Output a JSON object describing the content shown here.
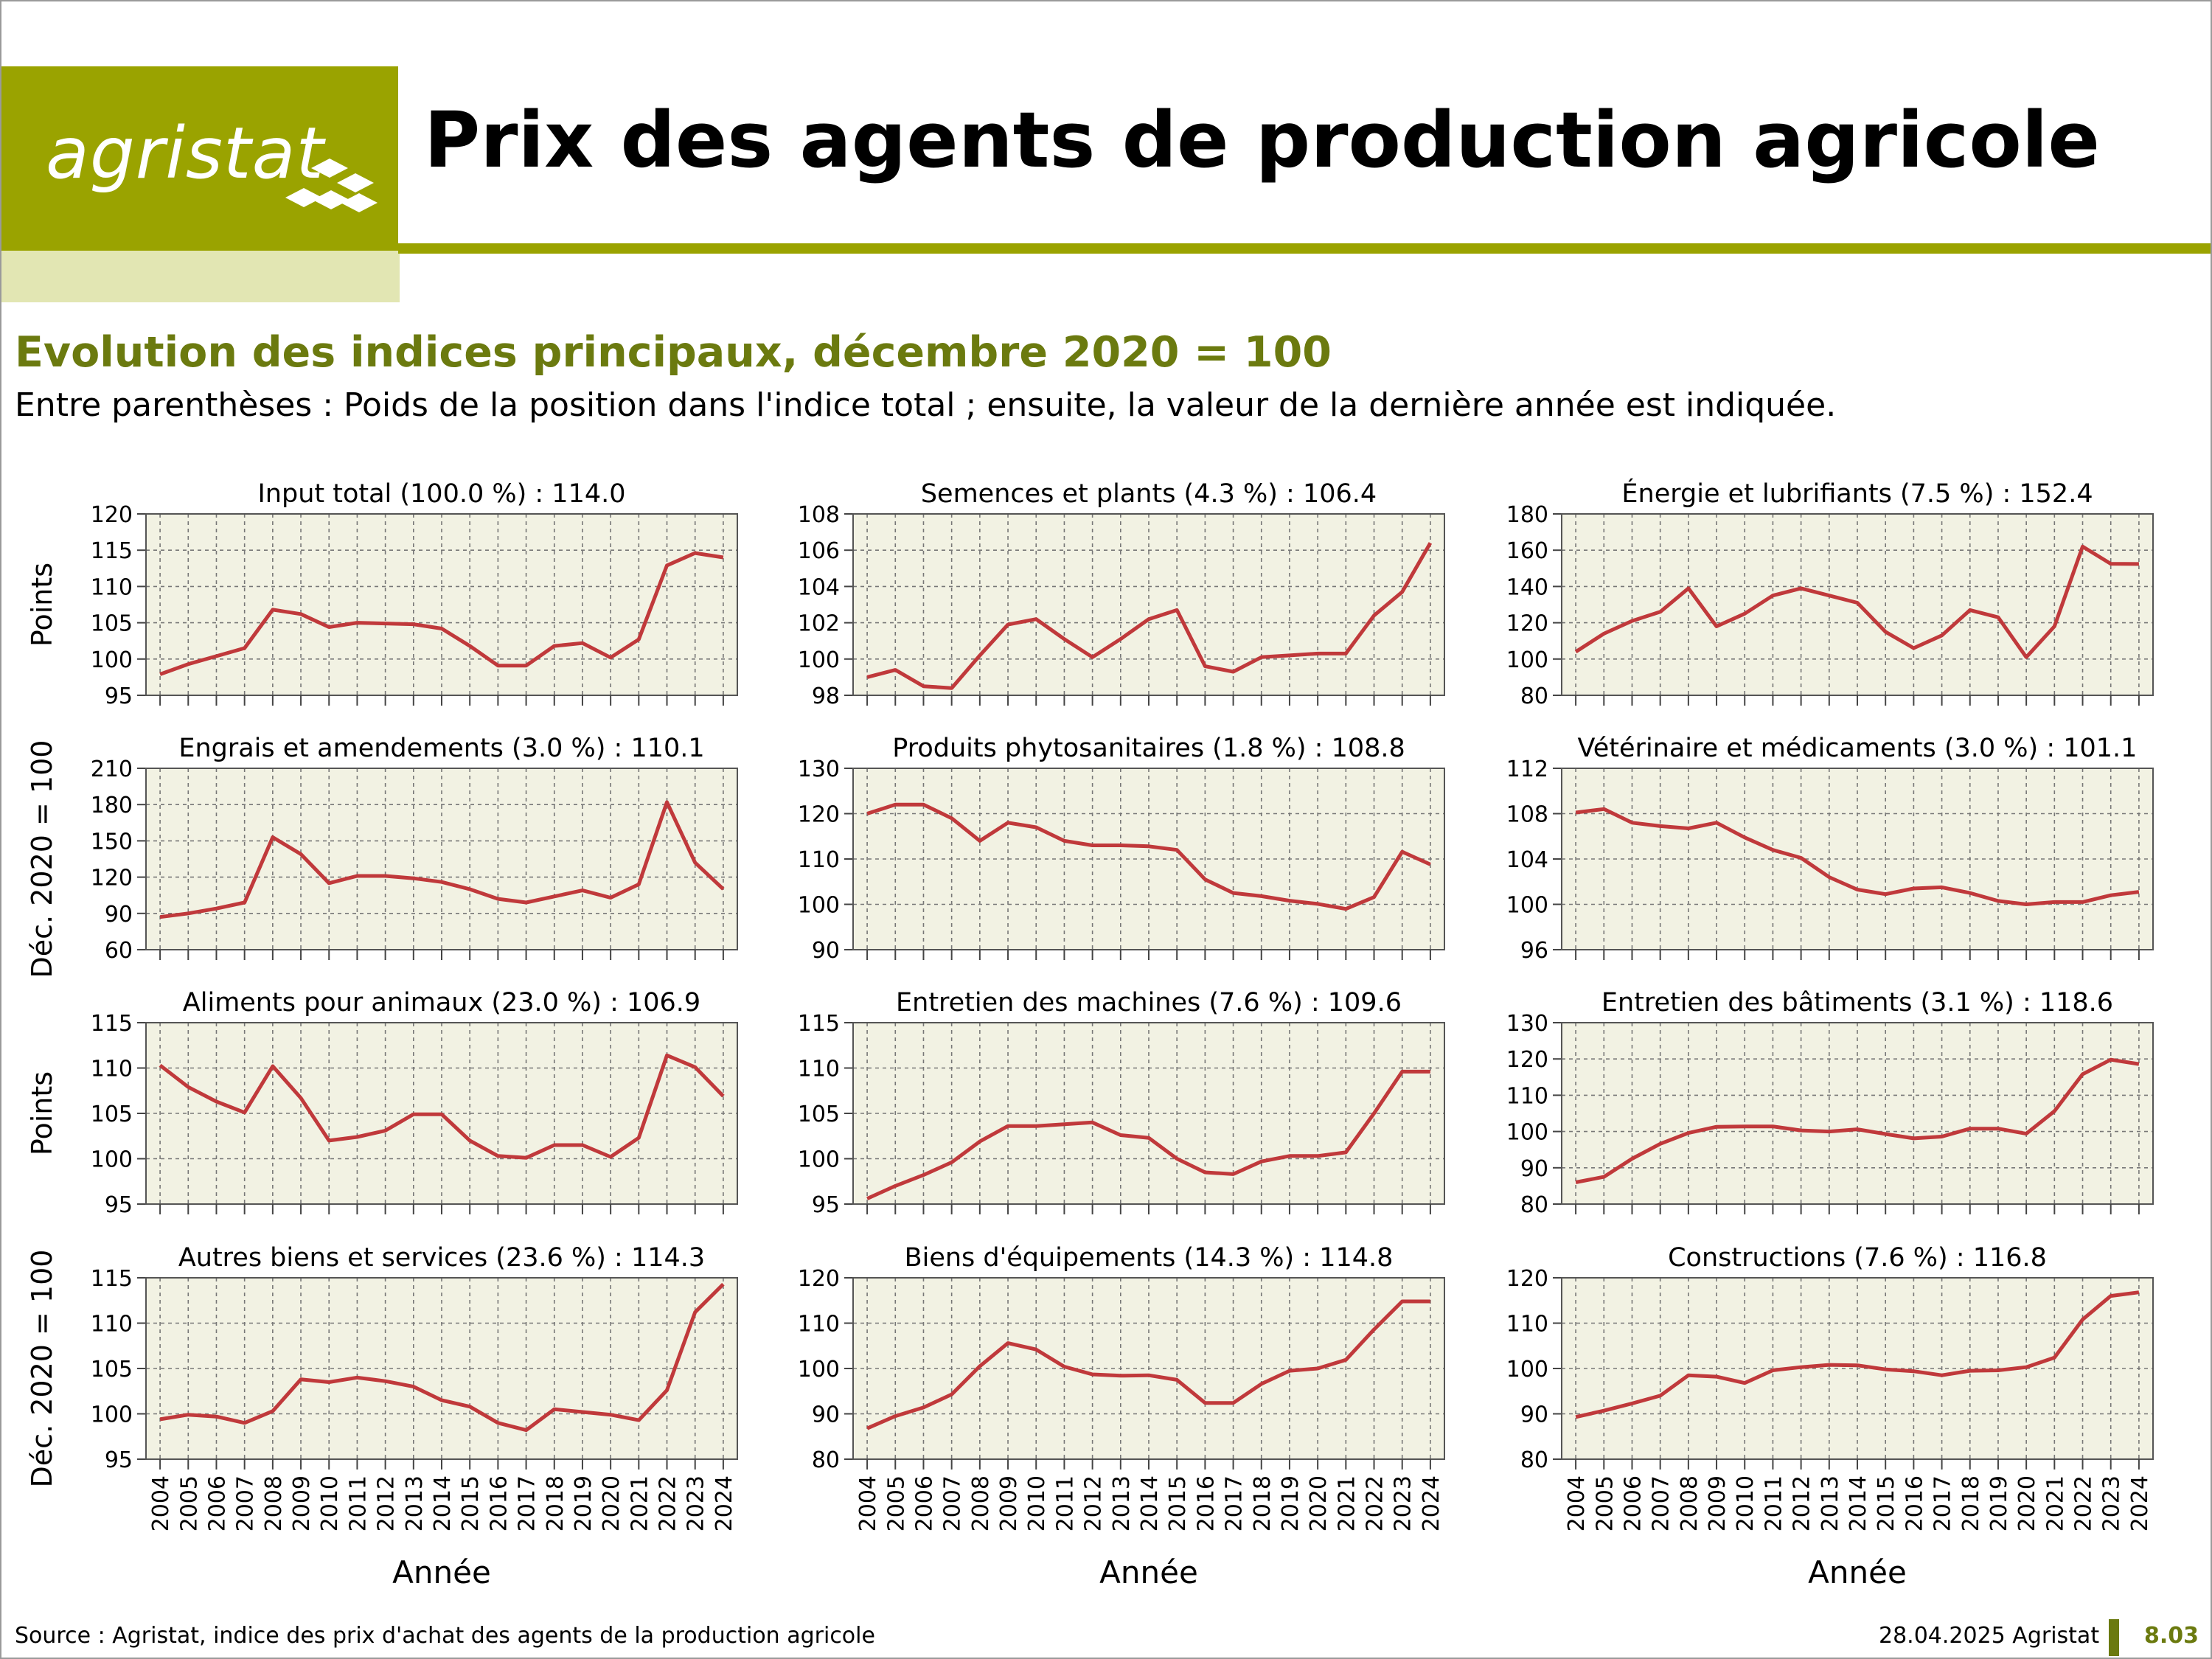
{
  "header": {
    "logo_text": "agristat",
    "title": "Prix des agents de production agricole",
    "subtitle": "Evolution des indices principaux, décembre 2020 = 100",
    "note": "Entre parenthèses : Poids de la position dans l'indice total ; ensuite, la valeur de la dernière année est indiquée."
  },
  "footer": {
    "source": "Source : Agristat, indice des prix d'achat des agents de la production agricole",
    "date": "28.04.2025 Agristat",
    "page": "8.03"
  },
  "colors": {
    "brand": "#9aa300",
    "brand_light": "#e2e6b3",
    "heading": "#6b7a0f",
    "line": "#c0393b",
    "plot_bg": "#f2f2e3"
  },
  "axis_labels": {
    "y_row1": "Points",
    "y_row2": "Déc. 2020 = 100",
    "y_row3": "Points",
    "y_row4": "Déc. 2020 = 100",
    "x": "Année"
  },
  "chart_data": [
    {
      "type": "line",
      "title": "Input total (100.0 %) : 114.0",
      "ylim": [
        95,
        120
      ],
      "yticks": [
        95,
        100,
        105,
        110,
        115,
        120
      ],
      "x": [
        2004,
        2005,
        2006,
        2007,
        2008,
        2009,
        2010,
        2011,
        2012,
        2013,
        2014,
        2015,
        2016,
        2017,
        2018,
        2019,
        2020,
        2021,
        2022,
        2023,
        2024
      ],
      "values": [
        97.9,
        99.3,
        100.4,
        101.5,
        106.8,
        106.2,
        104.4,
        105.0,
        104.9,
        104.8,
        104.2,
        101.8,
        99.1,
        99.1,
        101.8,
        102.2,
        100.2,
        102.7,
        112.9,
        114.6,
        114.0
      ]
    },
    {
      "type": "line",
      "title": "Semences et plants (4.3 %) : 106.4",
      "ylim": [
        98,
        108
      ],
      "yticks": [
        98,
        100,
        102,
        104,
        106,
        108
      ],
      "x": [
        2004,
        2005,
        2006,
        2007,
        2008,
        2009,
        2010,
        2011,
        2012,
        2013,
        2014,
        2015,
        2016,
        2017,
        2018,
        2019,
        2020,
        2021,
        2022,
        2023,
        2024
      ],
      "values": [
        99.0,
        99.4,
        98.5,
        98.4,
        100.2,
        101.9,
        102.2,
        101.1,
        100.1,
        101.1,
        102.2,
        102.7,
        99.6,
        99.3,
        100.1,
        100.2,
        100.3,
        100.3,
        102.4,
        103.7,
        106.4
      ]
    },
    {
      "type": "line",
      "title": "Énergie et lubrifiants (7.5 %) : 152.4",
      "ylim": [
        80,
        180
      ],
      "yticks": [
        80,
        100,
        120,
        140,
        160,
        180
      ],
      "x": [
        2004,
        2005,
        2006,
        2007,
        2008,
        2009,
        2010,
        2011,
        2012,
        2013,
        2014,
        2015,
        2016,
        2017,
        2018,
        2019,
        2020,
        2021,
        2022,
        2023,
        2024
      ],
      "values": [
        104,
        114,
        121,
        126,
        139,
        118,
        125,
        135,
        139,
        135,
        131,
        115,
        106,
        113,
        127,
        123,
        101,
        118,
        162,
        152.5,
        152.4
      ]
    },
    {
      "type": "line",
      "title": "Engrais et amendements (3.0 %) : 110.1",
      "ylim": [
        60,
        210
      ],
      "yticks": [
        60,
        90,
        120,
        150,
        180,
        210
      ],
      "x": [
        2004,
        2005,
        2006,
        2007,
        2008,
        2009,
        2010,
        2011,
        2012,
        2013,
        2014,
        2015,
        2016,
        2017,
        2018,
        2019,
        2020,
        2021,
        2022,
        2023,
        2024
      ],
      "values": [
        87,
        90,
        94,
        99,
        153,
        139,
        115,
        121,
        121,
        119,
        116,
        110,
        102,
        99,
        104,
        109,
        103,
        114,
        182,
        132,
        110.1
      ]
    },
    {
      "type": "line",
      "title": "Produits phytosanitaires (1.8 %) : 108.8",
      "ylim": [
        90,
        130
      ],
      "yticks": [
        90,
        100,
        110,
        120,
        130
      ],
      "x": [
        2004,
        2005,
        2006,
        2007,
        2008,
        2009,
        2010,
        2011,
        2012,
        2013,
        2014,
        2015,
        2016,
        2017,
        2018,
        2019,
        2020,
        2021,
        2022,
        2023,
        2024
      ],
      "values": [
        120,
        122,
        122,
        119,
        114,
        118,
        117,
        114,
        113,
        113,
        112.8,
        112,
        105.5,
        102.5,
        101.8,
        100.8,
        100.1,
        99,
        101.6,
        111.6,
        108.8
      ]
    },
    {
      "type": "line",
      "title": "Vétérinaire et médicaments (3.0 %) : 101.1",
      "ylim": [
        96,
        112
      ],
      "yticks": [
        96,
        100,
        104,
        108,
        112
      ],
      "x": [
        2004,
        2005,
        2006,
        2007,
        2008,
        2009,
        2010,
        2011,
        2012,
        2013,
        2014,
        2015,
        2016,
        2017,
        2018,
        2019,
        2020,
        2021,
        2022,
        2023,
        2024
      ],
      "values": [
        108.1,
        108.4,
        107.2,
        106.9,
        106.7,
        107.2,
        105.9,
        104.8,
        104.1,
        102.4,
        101.3,
        100.9,
        101.4,
        101.5,
        101.0,
        100.3,
        100.0,
        100.2,
        100.2,
        100.8,
        101.1
      ]
    },
    {
      "type": "line",
      "title": "Aliments pour animaux (23.0 %) : 106.9",
      "ylim": [
        95,
        115
      ],
      "yticks": [
        95,
        100,
        105,
        110,
        115
      ],
      "x": [
        2004,
        2005,
        2006,
        2007,
        2008,
        2009,
        2010,
        2011,
        2012,
        2013,
        2014,
        2015,
        2016,
        2017,
        2018,
        2019,
        2020,
        2021,
        2022,
        2023,
        2024
      ],
      "values": [
        110.3,
        107.9,
        106.3,
        105.1,
        110.2,
        106.7,
        102.0,
        102.4,
        103.1,
        104.9,
        104.9,
        102.0,
        100.3,
        100.1,
        101.5,
        101.5,
        100.2,
        102.3,
        111.4,
        110.1,
        106.9
      ]
    },
    {
      "type": "line",
      "title": "Entretien des machines (7.6 %) : 109.6",
      "ylim": [
        95,
        115
      ],
      "yticks": [
        95,
        100,
        105,
        110,
        115
      ],
      "x": [
        2004,
        2005,
        2006,
        2007,
        2008,
        2009,
        2010,
        2011,
        2012,
        2013,
        2014,
        2015,
        2016,
        2017,
        2018,
        2019,
        2020,
        2021,
        2022,
        2023,
        2024
      ],
      "values": [
        95.6,
        97.0,
        98.2,
        99.6,
        101.9,
        103.6,
        103.6,
        103.8,
        104.0,
        102.6,
        102.3,
        100.0,
        98.5,
        98.3,
        99.7,
        100.3,
        100.3,
        100.7,
        105.0,
        109.6,
        109.6
      ]
    },
    {
      "type": "line",
      "title": "Entretien des bâtiments (3.1 %) : 118.6",
      "ylim": [
        80,
        130
      ],
      "yticks": [
        80,
        90,
        100,
        110,
        120,
        130
      ],
      "x": [
        2004,
        2005,
        2006,
        2007,
        2008,
        2009,
        2010,
        2011,
        2012,
        2013,
        2014,
        2015,
        2016,
        2017,
        2018,
        2019,
        2020,
        2021,
        2022,
        2023,
        2024
      ],
      "values": [
        86,
        87.5,
        92.5,
        96.6,
        99.6,
        101.3,
        101.4,
        101.4,
        100.3,
        100.0,
        100.6,
        99.3,
        98.1,
        98.6,
        100.8,
        100.8,
        99.4,
        105.6,
        115.8,
        119.8,
        118.6
      ]
    },
    {
      "type": "line",
      "title": "Autres biens et services (23.6 %) : 114.3",
      "ylim": [
        95,
        115
      ],
      "yticks": [
        95,
        100,
        105,
        110,
        115
      ],
      "x": [
        2004,
        2005,
        2006,
        2007,
        2008,
        2009,
        2010,
        2011,
        2012,
        2013,
        2014,
        2015,
        2016,
        2017,
        2018,
        2019,
        2020,
        2021,
        2022,
        2023,
        2024
      ],
      "values": [
        99.4,
        99.9,
        99.7,
        99.0,
        100.3,
        103.8,
        103.5,
        104.0,
        103.6,
        103.0,
        101.5,
        100.8,
        99.0,
        98.2,
        100.5,
        100.2,
        99.9,
        99.3,
        102.6,
        111.2,
        114.3
      ]
    },
    {
      "type": "line",
      "title": "Biens d'équipements (14.3 %) : 114.8",
      "ylim": [
        80,
        120
      ],
      "yticks": [
        80,
        90,
        100,
        110,
        120
      ],
      "x": [
        2004,
        2005,
        2006,
        2007,
        2008,
        2009,
        2010,
        2011,
        2012,
        2013,
        2014,
        2015,
        2016,
        2017,
        2018,
        2019,
        2020,
        2021,
        2022,
        2023,
        2024
      ],
      "values": [
        86.8,
        89.5,
        91.4,
        94.3,
        100.5,
        105.6,
        104.2,
        100.4,
        98.7,
        98.4,
        98.5,
        97.5,
        92.4,
        92.4,
        96.6,
        99.5,
        100.0,
        101.9,
        108.6,
        114.8,
        114.8
      ]
    },
    {
      "type": "line",
      "title": "Constructions (7.6 %) : 116.8",
      "ylim": [
        80,
        120
      ],
      "yticks": [
        80,
        90,
        100,
        110,
        120
      ],
      "x": [
        2004,
        2005,
        2006,
        2007,
        2008,
        2009,
        2010,
        2011,
        2012,
        2013,
        2014,
        2015,
        2016,
        2017,
        2018,
        2019,
        2020,
        2021,
        2022,
        2023,
        2024
      ],
      "values": [
        89.3,
        90.7,
        92.3,
        94.0,
        98.5,
        98.2,
        96.8,
        99.6,
        100.3,
        100.8,
        100.7,
        99.8,
        99.4,
        98.5,
        99.5,
        99.6,
        100.3,
        102.4,
        110.8,
        116.0,
        116.8
      ]
    }
  ]
}
